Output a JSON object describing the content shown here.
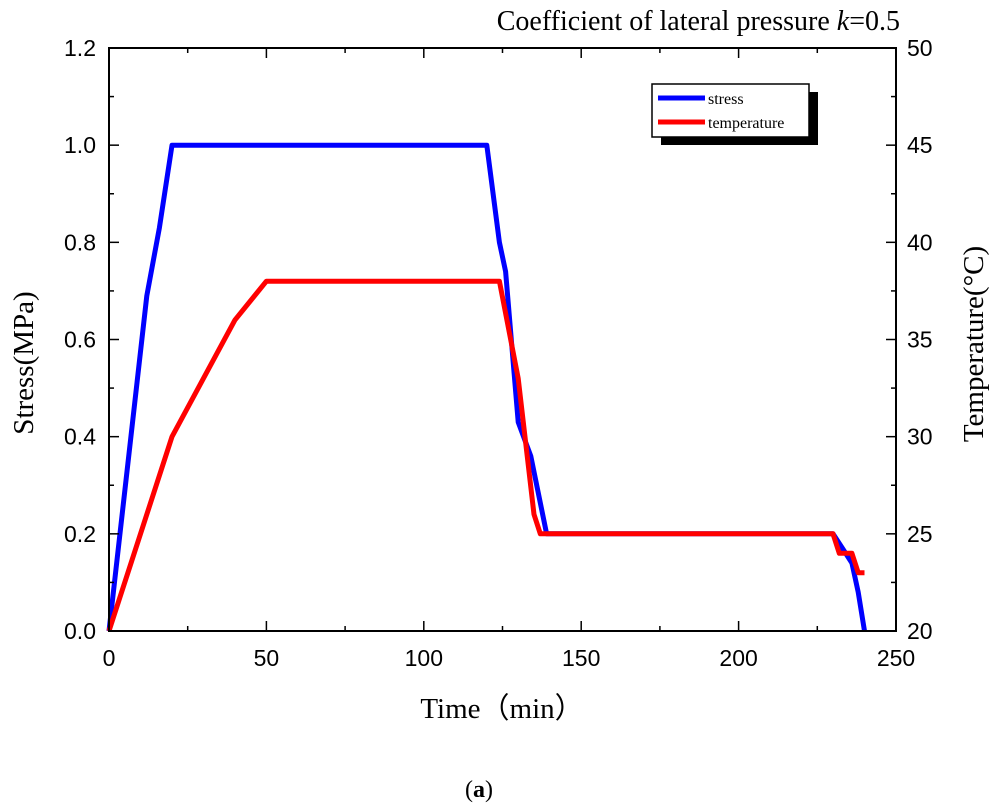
{
  "chart_data": {
    "type": "line",
    "title_prefix": "Coefficient of lateral pressure ",
    "title_var": "k",
    "title_suffix": "=0.5",
    "xlabel": "Time（min）",
    "ylabel_left": "Stress(MPa)",
    "ylabel_right": "Temperature(°C)",
    "caption_open": "(",
    "caption_letter": "a",
    "caption_close": ")",
    "xlim": [
      0,
      250
    ],
    "ylim_left": [
      0,
      1.2
    ],
    "ylim_right": [
      20,
      50
    ],
    "x_ticks": [
      "0",
      "50",
      "100",
      "150",
      "200",
      "250"
    ],
    "y_left_ticks": [
      "0.0",
      "0.2",
      "0.4",
      "0.6",
      "0.8",
      "1.0",
      "1.2"
    ],
    "y_right_ticks": [
      "20",
      "25",
      "30",
      "35",
      "40",
      "45",
      "50"
    ],
    "grid": false,
    "legend_position": "top-right",
    "series": [
      {
        "name": "stress",
        "axis": "left",
        "color": "#0000ff",
        "points": [
          [
            0,
            0
          ],
          [
            12,
            0.69
          ],
          [
            16,
            0.83
          ],
          [
            20,
            1.0
          ],
          [
            120,
            1.0
          ],
          [
            124,
            0.8
          ],
          [
            126,
            0.74
          ],
          [
            130,
            0.43
          ],
          [
            134,
            0.36
          ],
          [
            139,
            0.2
          ],
          [
            230,
            0.2
          ],
          [
            233,
            0.17
          ],
          [
            236,
            0.14
          ],
          [
            238,
            0.08
          ],
          [
            240,
            0
          ]
        ]
      },
      {
        "name": "temperature",
        "axis": "right",
        "color": "#ff0000",
        "points": [
          [
            0,
            20
          ],
          [
            20,
            30
          ],
          [
            40,
            36
          ],
          [
            50,
            38
          ],
          [
            124,
            38
          ],
          [
            130,
            33
          ],
          [
            135,
            26
          ],
          [
            137,
            25
          ],
          [
            230,
            25
          ],
          [
            232,
            24
          ],
          [
            236,
            24
          ],
          [
            238,
            23
          ],
          [
            240,
            23
          ]
        ]
      }
    ]
  }
}
